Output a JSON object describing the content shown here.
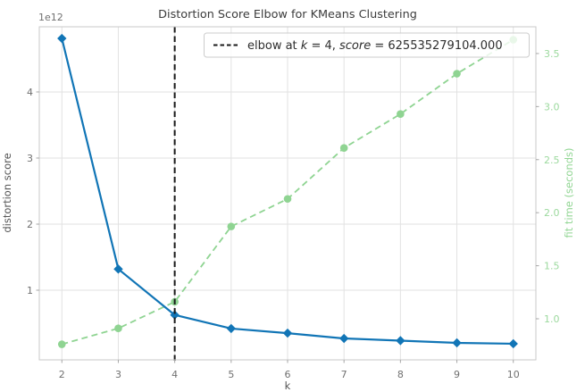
{
  "window": {
    "title": "Distortion Score Elbow for KMeans Clustering"
  },
  "colors": {
    "distortion_line": "#1175b6",
    "fit_time_line": "#8fd492",
    "right_tick_label": "#9cd99e",
    "elbow_line": "#1a1a1a",
    "grid": "#e2e2e2",
    "spine": "#c8c8c8",
    "tick_mark": "#a6a6a6",
    "title_text": "#3b3b3b",
    "tick_text": "#707070",
    "legend_border": "#cccccc",
    "legend_background": "#ffffff"
  },
  "chart_data": {
    "type": "line",
    "title": "Distortion Score Elbow for KMeans Clustering",
    "xlabel": "k",
    "x": [
      2,
      3,
      4,
      5,
      6,
      7,
      8,
      9,
      10
    ],
    "x_tick_labels": [
      "2",
      "3",
      "4",
      "5",
      "6",
      "7",
      "8",
      "9",
      "10"
    ],
    "xlim": [
      1.6,
      10.4
    ],
    "grid": true,
    "series": [
      {
        "name": "distortion score",
        "axis": "left",
        "color": "#1175b6",
        "line_style": "solid",
        "marker": "diamond",
        "values_1e12": [
          4.81,
          1.32,
          0.6255,
          0.42,
          0.35,
          0.27,
          0.237,
          0.203,
          0.19
        ]
      },
      {
        "name": "fit time (seconds)",
        "axis": "right",
        "color": "#8fd492",
        "line_style": "dashed",
        "marker": "circle",
        "values_seconds": [
          0.76,
          0.91,
          1.16,
          1.87,
          2.13,
          2.61,
          2.93,
          3.31,
          3.63
        ]
      }
    ],
    "y_left": {
      "label": "distortion score",
      "offset_text": "1e12",
      "ticks_1e12": [
        1,
        2,
        3,
        4
      ],
      "tick_labels": [
        "1",
        "2",
        "3",
        "4"
      ],
      "lim_1e12": [
        -0.054,
        4.986
      ]
    },
    "y_right": {
      "label": "fit time (seconds)",
      "ticks": [
        1.0,
        1.5,
        2.0,
        2.5,
        3.0,
        3.5
      ],
      "tick_labels": [
        "1.0",
        "1.5",
        "2.0",
        "2.5",
        "3.0",
        "3.5"
      ],
      "lim": [
        0.613,
        3.752
      ]
    },
    "elbow": {
      "k": 4,
      "score": 625535279104.0
    },
    "legend": {
      "position": "upper right",
      "full_text": "elbow at k = 4, score = 625535279104.000",
      "parts": [
        {
          "text": "elbow at ",
          "italic": false
        },
        {
          "text": "k",
          "italic": true
        },
        {
          "text": " = 4, ",
          "italic": false
        },
        {
          "text": "score",
          "italic": true
        },
        {
          "text": " = 625535279104.000",
          "italic": false
        }
      ]
    }
  }
}
